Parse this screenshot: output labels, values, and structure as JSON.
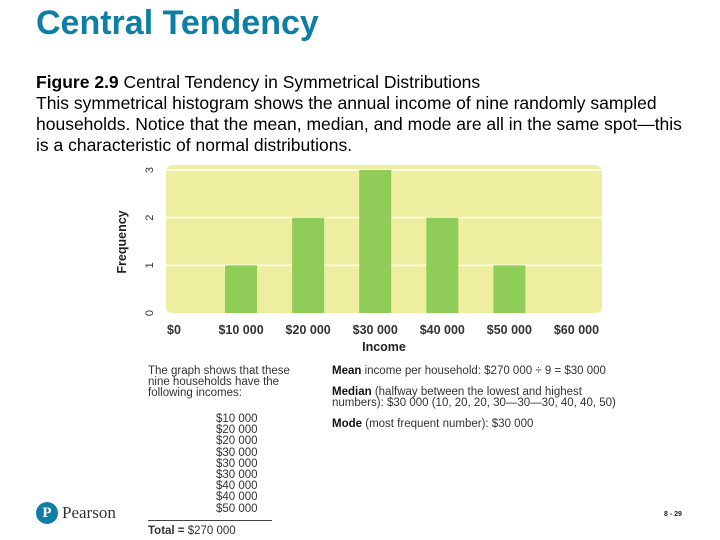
{
  "title": "Central Tendency",
  "figure": {
    "label": "Figure 2.9",
    "title": "Central Tendency in Symmetrical Distributions",
    "description": "This symmetrical histogram shows the annual income of nine randomly sampled households. Notice that the mean, median, and mode are all in the same spot—this is a characteristic of normal distributions."
  },
  "chart_data": {
    "type": "bar",
    "xlabel": "Income",
    "ylabel": "Frequency",
    "categories": [
      "$0",
      "$10 000",
      "$20 000",
      "$30 000",
      "$40 000",
      "$50 000",
      "$60 000"
    ],
    "series": [
      {
        "values": [
          0,
          1,
          2,
          3,
          2,
          1,
          0
        ]
      }
    ],
    "ylim": [
      0,
      3
    ],
    "yticks": [
      "0",
      "1",
      "2",
      "3"
    ],
    "grid": true,
    "background_color": "#eeeea1",
    "bar_color": "#8fcc58"
  },
  "notes": {
    "left_text": "The graph shows that these nine households have the following incomes:",
    "incomes": [
      "$10 000",
      "$20 000",
      "$20 000",
      "$30 000",
      "$30 000",
      "$30 000",
      "$40 000",
      "$40 000",
      "$50 000"
    ],
    "total_label": "Total =",
    "total_value": "$270 000",
    "mean_label": "Mean",
    "mean_text": "income per household: $270 000 ÷ 9 = $30 000",
    "median_label": "Median",
    "median_text": "(halfway between the lowest and highest numbers): $30 000 (10, 20, 20, 30—30—30, 40, 40, 50)",
    "mode_label": "Mode",
    "mode_text": "(most frequent number): $30 000"
  },
  "footer": {
    "logo_letter": "P",
    "logo_text": "Pearson",
    "page": "8 - 29"
  }
}
